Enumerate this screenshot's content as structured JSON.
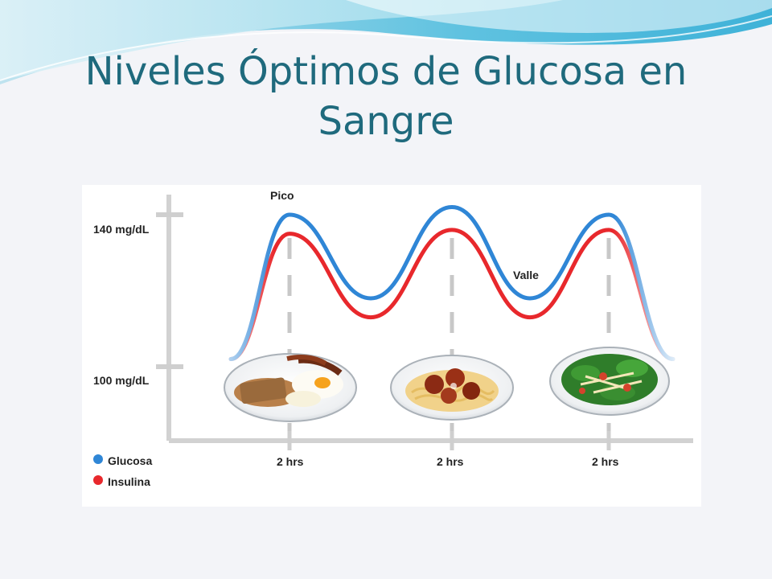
{
  "slide": {
    "title": "Niveles Óptimos de Glucosa en Sangre"
  },
  "chart_data": {
    "type": "line",
    "title": "",
    "y_ticks": [
      {
        "label": "140 mg/dL",
        "value": 140
      },
      {
        "label": "100 mg/dL",
        "value": 100
      }
    ],
    "x_ticks": [
      "2 hrs",
      "2 hrs",
      "2 hrs"
    ],
    "annotations": {
      "peak": "Pico",
      "valley": "Valle"
    },
    "legend": {
      "placement": "bottom-left",
      "entries": [
        {
          "name": "Glucosa",
          "color": "#2f86d6"
        },
        {
          "name": "Insulina",
          "color": "#e8282c"
        }
      ]
    },
    "series": [
      {
        "name": "Glucosa",
        "color": "#2f86d6",
        "peaks": [
          140,
          142,
          140
        ],
        "valleys": [
          118,
          118
        ]
      },
      {
        "name": "Insulina",
        "color": "#e8282c",
        "peaks": [
          135,
          136,
          136
        ],
        "valleys": [
          113,
          113
        ]
      }
    ],
    "meals": [
      "breakfast-plate",
      "spaghetti-meatballs-plate",
      "salad-plate"
    ]
  }
}
